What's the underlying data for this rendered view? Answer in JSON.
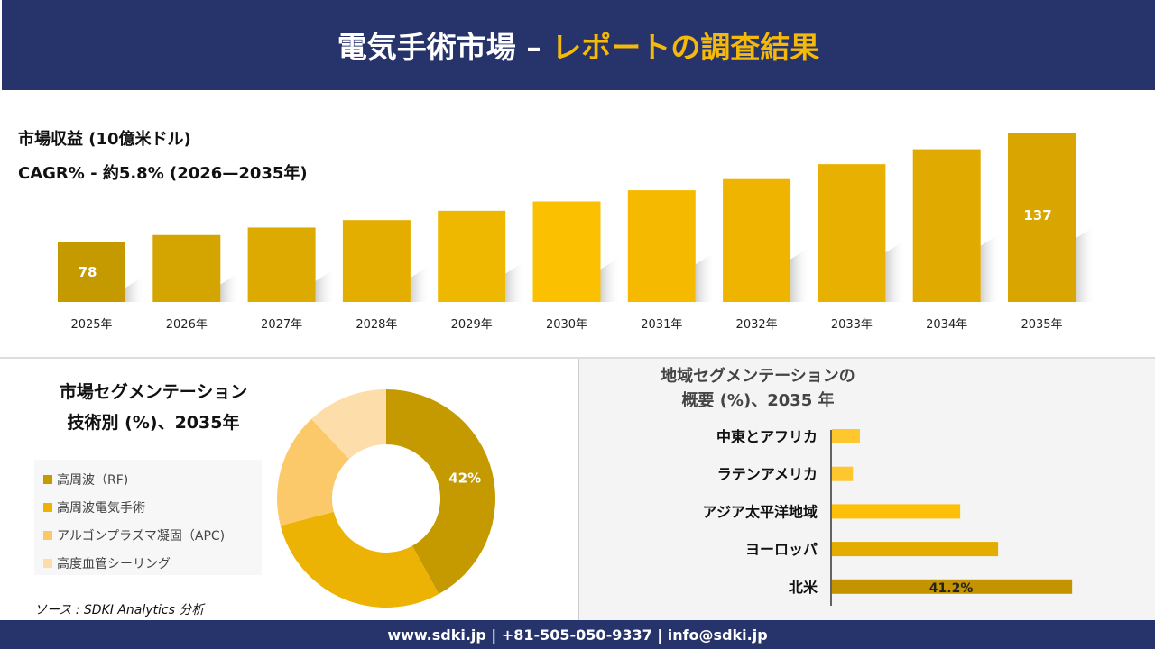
{
  "header": {
    "title_main": "電気手術市場 –",
    "title_accent": "レポートの調査結果"
  },
  "colors": {
    "navy": "#27336b",
    "accent": "#f5b90a"
  },
  "chart_data": [
    {
      "type": "bar",
      "title": "市場収益 (10億米ドル)",
      "subtitle": "CAGR% - 約5.8% (2026—2035年)",
      "categories": [
        "2025年",
        "2026年",
        "2027年",
        "2028年",
        "2029年",
        "2030年",
        "2031年",
        "2032年",
        "2033年",
        "2034年",
        "2035年"
      ],
      "values": [
        78,
        82,
        86,
        90,
        95,
        100,
        106,
        112,
        120,
        128,
        137
      ],
      "data_labels": {
        "0": "78",
        "10": "137"
      },
      "grid": false
    },
    {
      "type": "pie",
      "variant": "donut",
      "title_lines": [
        "市場セグメンテーション",
        "技術別 (%)、2035年"
      ],
      "categories": [
        "高周波（RF)",
        "高周波電気手術",
        "アルゴンプラズマ凝固（APC)",
        "高度血管シーリング"
      ],
      "values": [
        42,
        29,
        17,
        12
      ],
      "colors": [
        "#c49a00",
        "#edb304",
        "#fcc96a",
        "#fddeaa"
      ],
      "data_labels": {
        "0": "42%"
      },
      "legend": "left"
    },
    {
      "type": "bar",
      "orientation": "horizontal",
      "title_lines": [
        "地域セグメンテーションの",
        "概要 (%)、2035 年"
      ],
      "categories": [
        "中東とアフリカ",
        "ラテンアメリカ",
        "アジア太平洋地域",
        "ヨーロッパ",
        "北米"
      ],
      "values": [
        4.8,
        3.6,
        22,
        28.5,
        41.2
      ],
      "colors": [
        "#fdc72d",
        "#fdc72d",
        "#fdbf07",
        "#e3ad00",
        "#c49300"
      ],
      "data_labels": {
        "4": "41.2%"
      }
    }
  ],
  "source": "ソース : SDKI Analytics 分析",
  "footer": "www.sdki.jp | +81-505-050-9337 | info@sdki.jp"
}
